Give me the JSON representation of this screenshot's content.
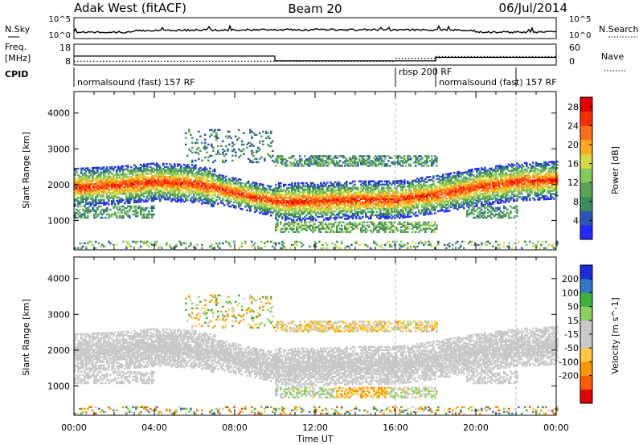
{
  "header": {
    "station": "Adak West (fitACF)",
    "beam": "Beam 20",
    "date": "06/Jul/2014"
  },
  "summary_panels": {
    "nsky": {
      "label": "N.Sky",
      "ticks": [
        "10^5",
        "10^0"
      ]
    },
    "nsearch": {
      "label": "N.Search",
      "ticks": [
        "10^5",
        "10^0"
      ]
    },
    "freq": {
      "label_line1": "Freq.",
      "label_line2": "[MHz]",
      "ticks": [
        "18",
        "8"
      ]
    },
    "nave": {
      "label": "Nave",
      "ticks": [
        "60",
        "0"
      ]
    },
    "cpid": {
      "label": "CPID"
    }
  },
  "cpid_segments": [
    {
      "name": "normalsound (fast) 157 RF",
      "start_hour": 0,
      "end_hour": 16
    },
    {
      "name": "rbsp 200 RF",
      "start_hour": 16,
      "end_hour": 18
    },
    {
      "name": "normalsound (fast) 157 RF",
      "start_hour": 18,
      "end_hour": 22
    }
  ],
  "colors": {
    "power": [
      "#1e28ff",
      "#2d55b4",
      "#3c8c5a",
      "#5aa055",
      "#82c85a",
      "#d2dc3c",
      "#ffaa1e",
      "#ff6e14",
      "#ff2d00",
      "#e60000"
    ],
    "velocity": [
      "#e60000",
      "#ff5a00",
      "#ff9600",
      "#ffc83c",
      "#c8c8c8",
      "#c8c8c8",
      "#8cd25a",
      "#3cb43c",
      "#3278c8",
      "#1e28dc"
    ],
    "ground_scatter": "#c8c8c8"
  },
  "chart_data": [
    {
      "type": "heatmap",
      "name": "power",
      "ylabel": "Slant Range [km]",
      "xlabel": "Time UT",
      "xlim": [
        0,
        24
      ],
      "ylim": [
        180,
        4600
      ],
      "y_ticks": [
        "4000",
        "3000",
        "2000",
        "1000"
      ],
      "x_ticks": [
        "00:00",
        "04:00",
        "08:00",
        "12:00",
        "16:00",
        "20:00",
        "00:00"
      ],
      "colorbar": {
        "label": "Power [dB]",
        "ticks": [
          "28",
          "24",
          "20",
          "16",
          "12",
          "8",
          "4"
        ],
        "range": [
          0,
          30
        ]
      },
      "features": [
        {
          "desc": "main band",
          "range_km_by_hour": [
            [
              0,
              1900
            ],
            [
              2,
              1950
            ],
            [
              4,
              2050
            ],
            [
              6,
              2000
            ],
            [
              8,
              1750
            ],
            [
              10,
              1500
            ],
            [
              12,
              1500
            ],
            [
              14,
              1550
            ],
            [
              16,
              1550
            ],
            [
              18,
              1700
            ],
            [
              20,
              1900
            ],
            [
              22,
              2050
            ],
            [
              24,
              2100
            ]
          ],
          "peak_power_db": 26
        },
        {
          "desc": "upper band",
          "hours": [
            10,
            18
          ],
          "range_km": 2650,
          "power_db": 10
        },
        {
          "desc": "lower band",
          "hours": [
            10,
            18
          ],
          "range_km": 800,
          "power_db": 12
        }
      ]
    },
    {
      "type": "heatmap",
      "name": "velocity",
      "ylabel": "Slant Range [km]",
      "xlabel": "Time UT",
      "xlim": [
        0,
        24
      ],
      "ylim": [
        180,
        4600
      ],
      "y_ticks": [
        "4000",
        "3000",
        "2000",
        "1000"
      ],
      "x_ticks": [
        "00:00",
        "04:00",
        "08:00",
        "12:00",
        "16:00",
        "20:00",
        "00:00"
      ],
      "colorbar": {
        "label": "Velocity [m s^-1]",
        "ticks": [
          "200",
          "100",
          "50",
          "15",
          "-15",
          "-50",
          "-100",
          "-200"
        ],
        "range": [
          -250,
          250
        ]
      },
      "features": [
        {
          "desc": "ground scatter main band",
          "velocity_ms": 0
        },
        {
          "desc": "upper band",
          "hours": [
            10,
            18
          ],
          "range_km": 2650,
          "velocity_ms": -40
        },
        {
          "desc": "lower band",
          "hours": [
            10,
            18
          ],
          "range_km": 800,
          "velocity_ms": -60
        }
      ]
    }
  ]
}
